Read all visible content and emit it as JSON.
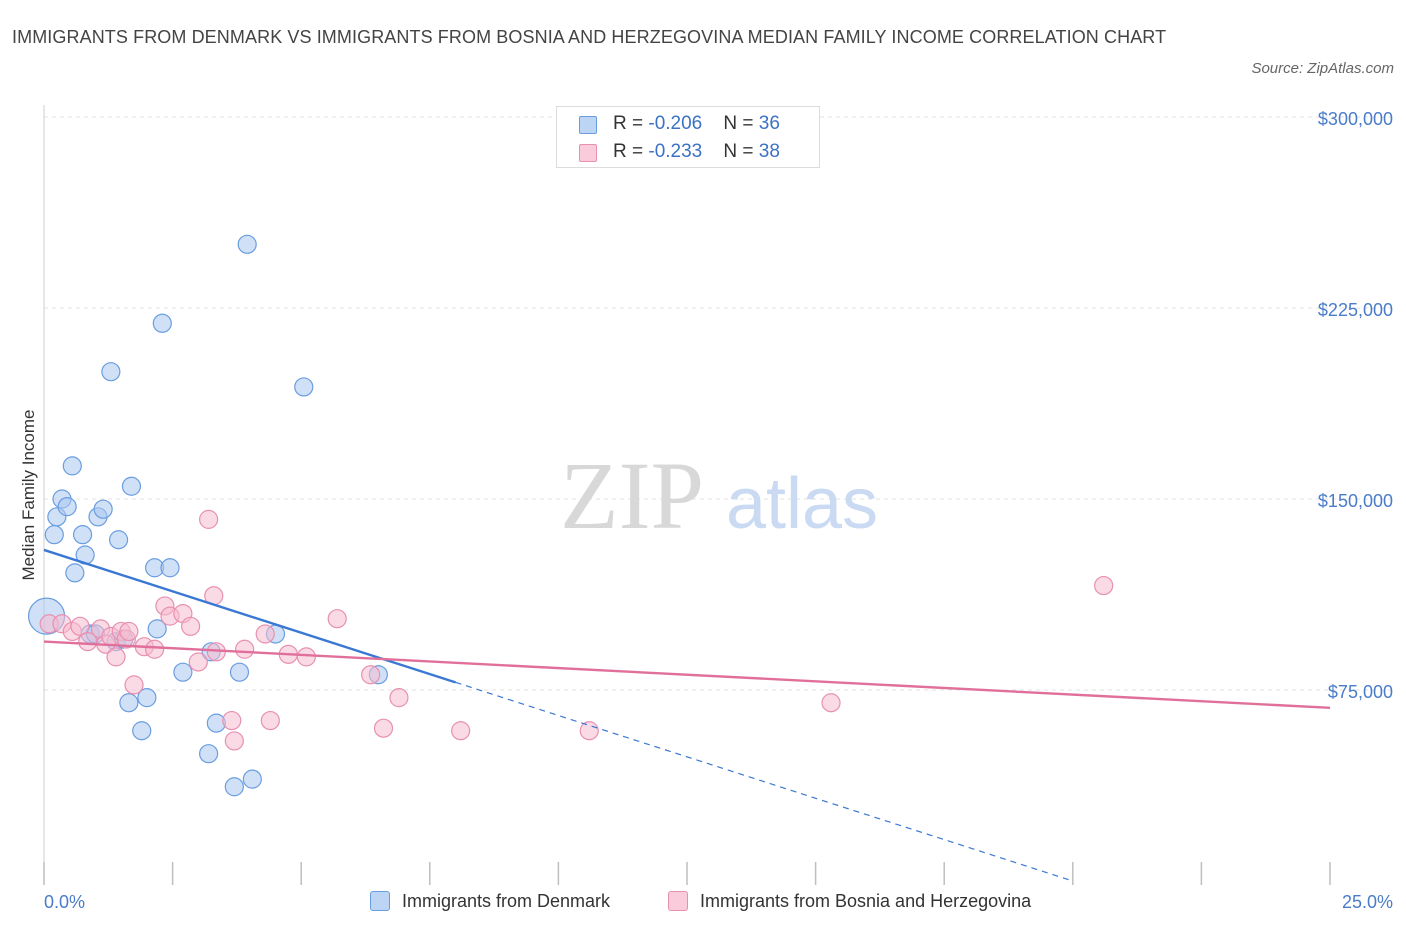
{
  "title": "IMMIGRANTS FROM DENMARK VS IMMIGRANTS FROM BOSNIA AND HERZEGOVINA MEDIAN FAMILY INCOME CORRELATION CHART",
  "source": "Source: ZipAtlas.com",
  "watermark": {
    "zip": "ZIP",
    "atlas": "atlas"
  },
  "legend_top": {
    "rows": [
      {
        "r_label": "R = ",
        "r_value": "-0.206",
        "n_label": "N = ",
        "n_value": "36"
      },
      {
        "r_label": "R = ",
        "r_value": "-0.233",
        "n_label": "N = ",
        "n_value": "38"
      }
    ]
  },
  "legend_bottom": {
    "series_a": "Immigrants from Denmark",
    "series_b": "Immigrants from Bosnia and Herzegovina"
  },
  "colors": {
    "series_a_fill": "#a9c8f0",
    "series_a_stroke": "#6a9de0",
    "series_a_line": "#3a78d4",
    "series_b_fill": "#f6bcd0",
    "series_b_stroke": "#e890b0",
    "series_b_line": "#e0709a",
    "grid": "#e2e2e2",
    "tick_text": "#4a7cc9"
  },
  "chart_data": {
    "type": "scatter",
    "title": "IMMIGRANTS FROM DENMARK VS IMMIGRANTS FROM BOSNIA AND HERZEGOVINA MEDIAN FAMILY INCOME CORRELATION CHART",
    "xlabel": "",
    "ylabel": "Median Family Income",
    "xlim": [
      0,
      25
    ],
    "ylim": [
      0,
      300000
    ],
    "x_tick_labels": [
      "0.0%",
      "25.0%"
    ],
    "y_ticks": [
      75000,
      150000,
      225000,
      300000
    ],
    "y_tick_labels": [
      "$75,000",
      "$150,000",
      "$225,000",
      "$300,000"
    ],
    "grid": true,
    "legend": "top-center",
    "series": [
      {
        "name": "Immigrants from Denmark",
        "R": -0.206,
        "N": 36,
        "points": [
          [
            0.05,
            104000
          ],
          [
            0.2,
            136000
          ],
          [
            0.25,
            143000
          ],
          [
            0.35,
            150000
          ],
          [
            0.45,
            147000
          ],
          [
            0.55,
            163000
          ],
          [
            0.6,
            121000
          ],
          [
            0.75,
            136000
          ],
          [
            0.8,
            128000
          ],
          [
            0.9,
            97000
          ],
          [
            1.0,
            97000
          ],
          [
            1.05,
            143000
          ],
          [
            1.15,
            146000
          ],
          [
            1.3,
            200000
          ],
          [
            1.4,
            94000
          ],
          [
            1.45,
            134000
          ],
          [
            1.55,
            95000
          ],
          [
            1.65,
            70000
          ],
          [
            1.7,
            155000
          ],
          [
            1.9,
            59000
          ],
          [
            2.0,
            72000
          ],
          [
            2.15,
            123000
          ],
          [
            2.2,
            99000
          ],
          [
            2.3,
            219000
          ],
          [
            2.45,
            123000
          ],
          [
            2.7,
            82000
          ],
          [
            3.2,
            50000
          ],
          [
            3.25,
            90000
          ],
          [
            3.35,
            62000
          ],
          [
            3.7,
            37000
          ],
          [
            3.8,
            82000
          ],
          [
            3.95,
            250000
          ],
          [
            4.05,
            40000
          ],
          [
            4.5,
            97000
          ],
          [
            5.05,
            194000
          ],
          [
            6.5,
            81000
          ]
        ],
        "trendline": {
          "x": [
            0,
            8
          ],
          "y": [
            130000,
            78000
          ],
          "dashed_to": [
            20,
            0
          ]
        }
      },
      {
        "name": "Immigrants from Bosnia and Herzegovina",
        "R": -0.233,
        "N": 38,
        "points": [
          [
            0.1,
            101000
          ],
          [
            0.35,
            101000
          ],
          [
            0.55,
            98000
          ],
          [
            0.7,
            100000
          ],
          [
            0.85,
            94000
          ],
          [
            1.1,
            99000
          ],
          [
            1.2,
            93000
          ],
          [
            1.3,
            96000
          ],
          [
            1.4,
            88000
          ],
          [
            1.5,
            98000
          ],
          [
            1.6,
            95000
          ],
          [
            1.65,
            98000
          ],
          [
            1.75,
            77000
          ],
          [
            1.95,
            92000
          ],
          [
            2.15,
            91000
          ],
          [
            2.35,
            108000
          ],
          [
            2.45,
            104000
          ],
          [
            2.7,
            105000
          ],
          [
            2.85,
            100000
          ],
          [
            3.0,
            86000
          ],
          [
            3.2,
            142000
          ],
          [
            3.3,
            112000
          ],
          [
            3.35,
            90000
          ],
          [
            3.65,
            63000
          ],
          [
            3.7,
            55000
          ],
          [
            3.9,
            91000
          ],
          [
            4.3,
            97000
          ],
          [
            4.4,
            63000
          ],
          [
            4.75,
            89000
          ],
          [
            5.1,
            88000
          ],
          [
            5.7,
            103000
          ],
          [
            6.35,
            81000
          ],
          [
            6.6,
            60000
          ],
          [
            6.9,
            72000
          ],
          [
            8.1,
            59000
          ],
          [
            10.6,
            59000
          ],
          [
            15.3,
            70000
          ],
          [
            20.6,
            116000
          ]
        ],
        "trendline": {
          "x": [
            0,
            25
          ],
          "y": [
            94000,
            68000
          ]
        }
      }
    ]
  }
}
